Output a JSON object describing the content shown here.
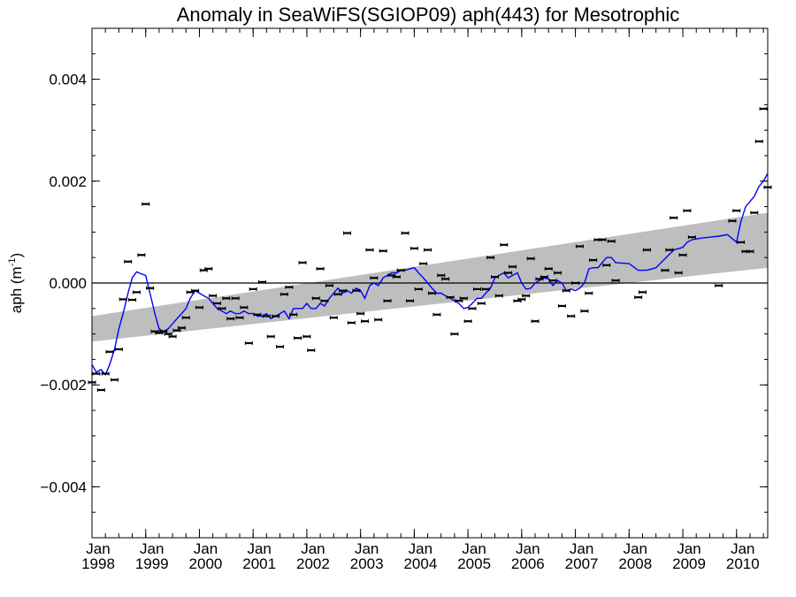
{
  "chart_data": {
    "type": "scatter",
    "title": "Anomaly in SeaWiFS(SGIOP09) aph(443) for Mesotrophic",
    "ylabel": "aph (m",
    "ylabel_sup": "-1",
    "ylabel_close": ")",
    "ylim": [
      -0.005,
      0.005
    ],
    "xlim": [
      1998.0,
      2010.58
    ],
    "grid": false,
    "y_ticks": [
      {
        "value": 0.004,
        "label": "0.004"
      },
      {
        "value": 0.002,
        "label": "0.002"
      },
      {
        "value": 0.0,
        "label": "0.000"
      },
      {
        "value": -0.002,
        "label": "−0.002"
      },
      {
        "value": -0.004,
        "label": "−0.004"
      }
    ],
    "x_ticks": [
      {
        "value": 1998,
        "month": "Jan",
        "year": "1998"
      },
      {
        "value": 1999,
        "month": "Jan",
        "year": "1999"
      },
      {
        "value": 2000,
        "month": "Jan",
        "year": "2000"
      },
      {
        "value": 2001,
        "month": "Jan",
        "year": "2001"
      },
      {
        "value": 2002,
        "month": "Jan",
        "year": "2002"
      },
      {
        "value": 2003,
        "month": "Jan",
        "year": "2003"
      },
      {
        "value": 2004,
        "month": "Jan",
        "year": "2004"
      },
      {
        "value": 2005,
        "month": "Jan",
        "year": "2005"
      },
      {
        "value": 2006,
        "month": "Jan",
        "year": "2006"
      },
      {
        "value": 2007,
        "month": "Jan",
        "year": "2007"
      },
      {
        "value": 2008,
        "month": "Jan",
        "year": "2008"
      },
      {
        "value": 2009,
        "month": "Jan",
        "year": "2009"
      },
      {
        "value": 2010,
        "month": "Jan",
        "year": "2010"
      }
    ],
    "trend_band": {
      "x": [
        1998.0,
        2010.58
      ],
      "upper": [
        -0.00065,
        0.00138
      ],
      "lower": [
        -0.00115,
        0.0003
      ],
      "color": "#bebebe"
    },
    "zero_line": 0.0,
    "monthly_points": [
      {
        "x": 1998.0,
        "y": -0.00195
      },
      {
        "x": 1998.08,
        "y": -0.00178
      },
      {
        "x": 1998.17,
        "y": -0.0021
      },
      {
        "x": 1998.25,
        "y": -0.00178
      },
      {
        "x": 1998.33,
        "y": -0.00135
      },
      {
        "x": 1998.42,
        "y": -0.0019
      },
      {
        "x": 1998.5,
        "y": -0.0013
      },
      {
        "x": 1998.58,
        "y": -0.00032
      },
      {
        "x": 1998.67,
        "y": 0.00042
      },
      {
        "x": 1998.75,
        "y": -0.00033
      },
      {
        "x": 1998.83,
        "y": -0.00018
      },
      {
        "x": 1998.92,
        "y": 0.00055
      },
      {
        "x": 1999.0,
        "y": 0.00155
      },
      {
        "x": 1999.08,
        "y": -0.0001
      },
      {
        "x": 1999.17,
        "y": -0.00095
      },
      {
        "x": 1999.25,
        "y": -0.00098
      },
      {
        "x": 1999.33,
        "y": -0.00095
      },
      {
        "x": 1999.42,
        "y": -0.001
      },
      {
        "x": 1999.5,
        "y": -0.00105
      },
      {
        "x": 1999.58,
        "y": -0.00093
      },
      {
        "x": 1999.67,
        "y": -0.00088
      },
      {
        "x": 1999.75,
        "y": -0.00068
      },
      {
        "x": 1999.83,
        "y": -0.00018
      },
      {
        "x": 1999.92,
        "y": -0.00015
      },
      {
        "x": 2000.0,
        "y": -0.00048
      },
      {
        "x": 2000.08,
        "y": 0.00025
      },
      {
        "x": 2000.17,
        "y": 0.00028
      },
      {
        "x": 2000.25,
        "y": -0.00025
      },
      {
        "x": 2000.33,
        "y": -0.0004
      },
      {
        "x": 2000.42,
        "y": -0.0005
      },
      {
        "x": 2000.5,
        "y": -0.0003
      },
      {
        "x": 2000.58,
        "y": -0.0007
      },
      {
        "x": 2000.67,
        "y": -0.0003
      },
      {
        "x": 2000.75,
        "y": -0.00068
      },
      {
        "x": 2000.83,
        "y": -0.00048
      },
      {
        "x": 2000.92,
        "y": -0.00118
      },
      {
        "x": 2001.0,
        "y": -0.00012
      },
      {
        "x": 2001.08,
        "y": -0.00062
      },
      {
        "x": 2001.17,
        "y": 2e-05
      },
      {
        "x": 2001.25,
        "y": -0.00065
      },
      {
        "x": 2001.33,
        "y": -0.00105
      },
      {
        "x": 2001.42,
        "y": -0.00065
      },
      {
        "x": 2001.5,
        "y": -0.00125
      },
      {
        "x": 2001.58,
        "y": -0.00022
      },
      {
        "x": 2001.67,
        "y": -8e-05
      },
      {
        "x": 2001.75,
        "y": -0.00062
      },
      {
        "x": 2001.83,
        "y": -0.00108
      },
      {
        "x": 2001.92,
        "y": 0.0004
      },
      {
        "x": 2002.0,
        "y": -0.00105
      },
      {
        "x": 2002.08,
        "y": -0.00132
      },
      {
        "x": 2002.17,
        "y": -0.0003
      },
      {
        "x": 2002.25,
        "y": 0.00028
      },
      {
        "x": 2002.33,
        "y": -0.00035
      },
      {
        "x": 2002.42,
        "y": -5e-05
      },
      {
        "x": 2002.5,
        "y": -0.00068
      },
      {
        "x": 2002.58,
        "y": -0.00022
      },
      {
        "x": 2002.67,
        "y": -0.00015
      },
      {
        "x": 2002.75,
        "y": 0.00098
      },
      {
        "x": 2002.83,
        "y": -0.00078
      },
      {
        "x": 2002.92,
        "y": -0.00015
      },
      {
        "x": 2003.0,
        "y": -0.0006
      },
      {
        "x": 2003.08,
        "y": -0.00075
      },
      {
        "x": 2003.17,
        "y": 0.00065
      },
      {
        "x": 2003.25,
        "y": 0.0001
      },
      {
        "x": 2003.33,
        "y": -0.00072
      },
      {
        "x": 2003.42,
        "y": 0.00063
      },
      {
        "x": 2003.5,
        "y": -0.00035
      },
      {
        "x": 2003.58,
        "y": 0.00015
      },
      {
        "x": 2003.67,
        "y": 0.00012
      },
      {
        "x": 2003.75,
        "y": 0.00025
      },
      {
        "x": 2003.83,
        "y": 0.00098
      },
      {
        "x": 2003.92,
        "y": -0.00035
      },
      {
        "x": 2004.0,
        "y": 0.00068
      },
      {
        "x": 2004.08,
        "y": -0.00012
      },
      {
        "x": 2004.17,
        "y": 0.00038
      },
      {
        "x": 2004.25,
        "y": 0.00065
      },
      {
        "x": 2004.33,
        "y": -0.0002
      },
      {
        "x": 2004.42,
        "y": -0.00062
      },
      {
        "x": 2004.5,
        "y": 0.00015
      },
      {
        "x": 2004.58,
        "y": 8e-05
      },
      {
        "x": 2004.67,
        "y": -0.00028
      },
      {
        "x": 2004.75,
        "y": -0.001
      },
      {
        "x": 2004.83,
        "y": -0.00035
      },
      {
        "x": 2004.92,
        "y": -0.0003
      },
      {
        "x": 2005.0,
        "y": -0.00075
      },
      {
        "x": 2005.08,
        "y": -0.0005
      },
      {
        "x": 2005.17,
        "y": -0.00012
      },
      {
        "x": 2005.25,
        "y": -0.0004
      },
      {
        "x": 2005.33,
        "y": -0.00012
      },
      {
        "x": 2005.42,
        "y": 0.0005
      },
      {
        "x": 2005.5,
        "y": 0.00012
      },
      {
        "x": 2005.58,
        "y": -0.00025
      },
      {
        "x": 2005.67,
        "y": 0.00075
      },
      {
        "x": 2005.75,
        "y": 0.0002
      },
      {
        "x": 2005.83,
        "y": 0.00032
      },
      {
        "x": 2005.92,
        "y": -0.00035
      },
      {
        "x": 2006.0,
        "y": -0.00032
      },
      {
        "x": 2006.08,
        "y": -0.00025
      },
      {
        "x": 2006.17,
        "y": 0.00048
      },
      {
        "x": 2006.25,
        "y": -0.00075
      },
      {
        "x": 2006.33,
        "y": 8e-05
      },
      {
        "x": 2006.42,
        "y": 0.00012
      },
      {
        "x": 2006.5,
        "y": 0.00028
      },
      {
        "x": 2006.58,
        "y": 5e-05
      },
      {
        "x": 2006.67,
        "y": 0.0002
      },
      {
        "x": 2006.75,
        "y": -0.00045
      },
      {
        "x": 2006.83,
        "y": -0.00015
      },
      {
        "x": 2006.92,
        "y": -0.00065
      },
      {
        "x": 2007.0,
        "y": 0.0
      },
      {
        "x": 2007.08,
        "y": 0.00072
      },
      {
        "x": 2007.17,
        "y": -0.00055
      },
      {
        "x": 2007.25,
        "y": -0.0002
      },
      {
        "x": 2007.33,
        "y": 0.00045
      },
      {
        "x": 2007.42,
        "y": 0.00085
      },
      {
        "x": 2007.5,
        "y": 0.00085
      },
      {
        "x": 2007.58,
        "y": 0.00035
      },
      {
        "x": 2007.67,
        "y": 0.00082
      },
      {
        "x": 2007.75,
        "y": 5e-05
      },
      {
        "x": 2008.17,
        "y": -0.00028
      },
      {
        "x": 2008.25,
        "y": -0.00018
      },
      {
        "x": 2008.33,
        "y": 0.00065
      },
      {
        "x": 2008.67,
        "y": 0.00025
      },
      {
        "x": 2008.75,
        "y": 0.00065
      },
      {
        "x": 2008.83,
        "y": 0.00128
      },
      {
        "x": 2008.92,
        "y": 0.0002
      },
      {
        "x": 2009.0,
        "y": 0.00055
      },
      {
        "x": 2009.08,
        "y": 0.00142
      },
      {
        "x": 2009.17,
        "y": 0.0009
      },
      {
        "x": 2009.67,
        "y": -5e-05
      },
      {
        "x": 2009.92,
        "y": 0.00122
      },
      {
        "x": 2010.0,
        "y": 0.00142
      },
      {
        "x": 2010.08,
        "y": 0.0008
      },
      {
        "x": 2010.17,
        "y": 0.00062
      },
      {
        "x": 2010.25,
        "y": 0.00062
      },
      {
        "x": 2010.33,
        "y": 0.00138
      },
      {
        "x": 2010.42,
        "y": 0.00278
      },
      {
        "x": 2010.5,
        "y": 0.00342
      },
      {
        "x": 2010.58,
        "y": 0.00188
      }
    ],
    "running_mean": {
      "color": "#0000ff",
      "x": [
        1998.0,
        1998.08,
        1998.17,
        1998.25,
        1998.33,
        1998.42,
        1998.5,
        1998.58,
        1998.67,
        1998.75,
        1998.83,
        1998.92,
        1999.0,
        1999.08,
        1999.17,
        1999.25,
        1999.33,
        1999.42,
        1999.5,
        1999.58,
        1999.67,
        1999.75,
        1999.83,
        1999.92,
        2000.0,
        2000.08,
        2000.17,
        2000.25,
        2000.33,
        2000.42,
        2000.5,
        2000.58,
        2000.67,
        2000.75,
        2000.83,
        2000.92,
        2001.0,
        2001.08,
        2001.17,
        2001.25,
        2001.33,
        2001.42,
        2001.5,
        2001.58,
        2001.67,
        2001.75,
        2001.83,
        2001.92,
        2002.0,
        2002.08,
        2002.17,
        2002.25,
        2002.33,
        2002.42,
        2002.5,
        2002.58,
        2002.67,
        2002.75,
        2002.83,
        2002.92,
        2003.0,
        2003.08,
        2003.17,
        2003.25,
        2003.33,
        2003.42,
        2003.5,
        2003.58,
        2003.67,
        2003.75,
        2003.83,
        2003.92,
        2004.0,
        2004.08,
        2004.17,
        2004.25,
        2004.33,
        2004.42,
        2004.5,
        2004.58,
        2004.67,
        2004.75,
        2004.83,
        2004.92,
        2005.0,
        2005.08,
        2005.17,
        2005.25,
        2005.33,
        2005.42,
        2005.5,
        2005.58,
        2005.67,
        2005.75,
        2005.83,
        2005.92,
        2006.0,
        2006.08,
        2006.17,
        2006.25,
        2006.33,
        2006.42,
        2006.5,
        2006.58,
        2006.67,
        2006.75,
        2006.83,
        2006.92,
        2007.0,
        2007.08,
        2007.17,
        2007.25,
        2007.33,
        2007.42,
        2007.5,
        2007.58,
        2007.67,
        2007.75,
        2008.0,
        2008.17,
        2008.33,
        2008.5,
        2008.67,
        2008.83,
        2009.0,
        2009.08,
        2009.17,
        2009.33,
        2009.5,
        2009.67,
        2009.83,
        2010.0,
        2010.08,
        2010.17,
        2010.25,
        2010.33,
        2010.42,
        2010.5,
        2010.58
      ],
      "y": [
        -0.0016,
        -0.00175,
        -0.0017,
        -0.0018,
        -0.0016,
        -0.0013,
        -0.0009,
        -0.0006,
        -0.0002,
        0.0001,
        0.00022,
        0.00018,
        0.00015,
        -0.0002,
        -0.0006,
        -0.0009,
        -0.00095,
        -0.0009,
        -0.0008,
        -0.0007,
        -0.0006,
        -0.0005,
        -0.0003,
        -0.00015,
        -0.0002,
        -0.00025,
        -0.0003,
        -0.0004,
        -0.0005,
        -0.00055,
        -0.0006,
        -0.00055,
        -0.0006,
        -0.0006,
        -0.00055,
        -0.0006,
        -0.0006,
        -0.00065,
        -0.00065,
        -0.0006,
        -0.0007,
        -0.00065,
        -0.0006,
        -0.00055,
        -0.0007,
        -0.0005,
        -0.0005,
        -0.0005,
        -0.0004,
        -0.0005,
        -0.0005,
        -0.0004,
        -0.00045,
        -0.0003,
        -0.0002,
        -0.0001,
        -0.0002,
        -0.00015,
        -0.0002,
        -0.0001,
        -0.00015,
        -0.0003,
        -5e-05,
        0.0,
        -5e-05,
        0.0001,
        0.00015,
        0.0002,
        0.0002,
        0.00025,
        0.00025,
        0.00028,
        0.0003,
        0.0002,
        0.0001,
        0.0,
        -0.0001,
        -0.0002,
        -0.0002,
        -0.00025,
        -0.0003,
        -0.00035,
        -0.0004,
        -0.0005,
        -0.00048,
        -0.0004,
        -0.0003,
        -0.0003,
        -0.0002,
        -0.0001,
        0.0001,
        0.00015,
        0.0002,
        0.0001,
        0.00015,
        0.0002,
        0.0,
        -0.00012,
        -0.0001,
        0.0,
        5e-05,
        0.0001,
        8e-05,
        -5e-05,
        5e-05,
        0.0,
        -0.00015,
        -0.00012,
        -0.00015,
        -0.0001,
        0.0,
        0.00028,
        0.0003,
        0.0003,
        0.0004,
        0.0005,
        0.0005,
        0.0004,
        0.00038,
        0.00025,
        0.00025,
        0.0003,
        0.00048,
        0.00065,
        0.0007,
        0.0008,
        0.00085,
        0.00088,
        0.0009,
        0.00092,
        0.00095,
        0.0008,
        0.0012,
        0.0015,
        0.0016,
        0.0017,
        0.0019,
        0.002,
        0.00215
      ]
    }
  }
}
